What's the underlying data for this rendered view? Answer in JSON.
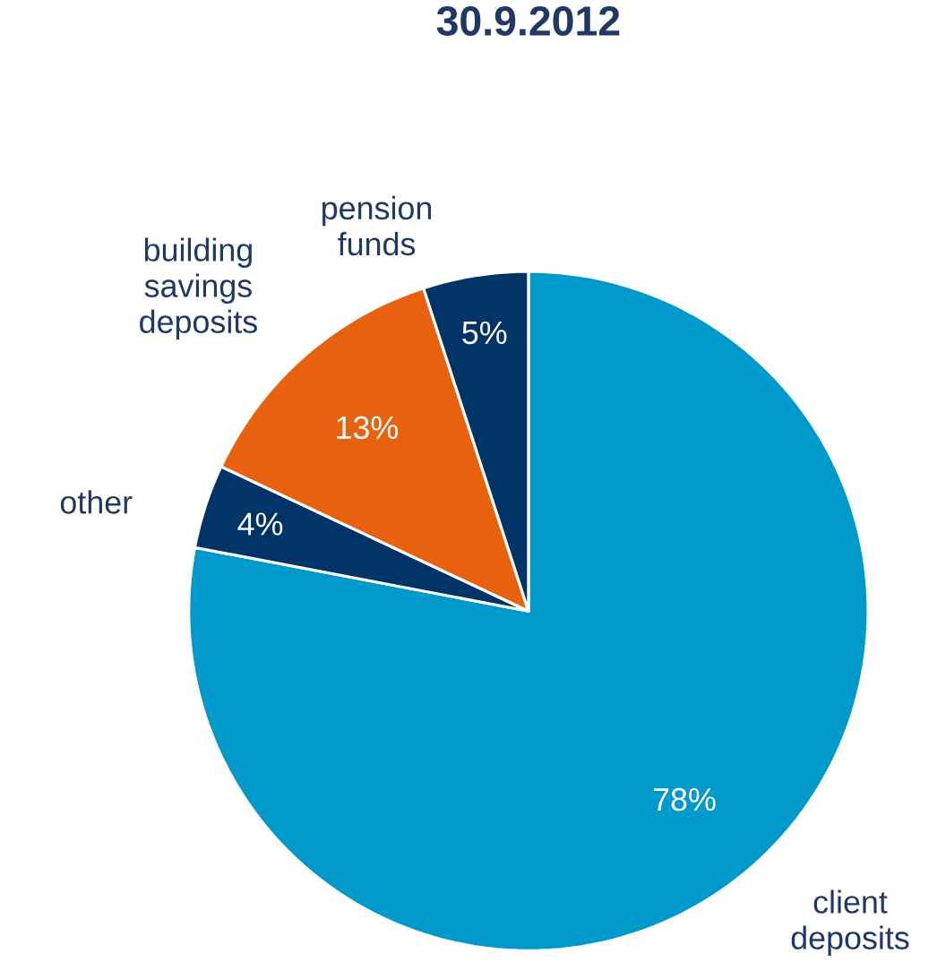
{
  "chart_data": {
    "type": "pie",
    "title": "30.9.2012",
    "categories": [
      "client deposits",
      "other",
      "building savings deposits",
      "pension funds"
    ],
    "values": [
      78,
      4,
      13,
      5
    ],
    "value_labels": [
      "78%",
      "4%",
      "13%",
      "5%"
    ],
    "colors": [
      "#0099cc",
      "#003366",
      "#e8610f",
      "#003366"
    ]
  }
}
